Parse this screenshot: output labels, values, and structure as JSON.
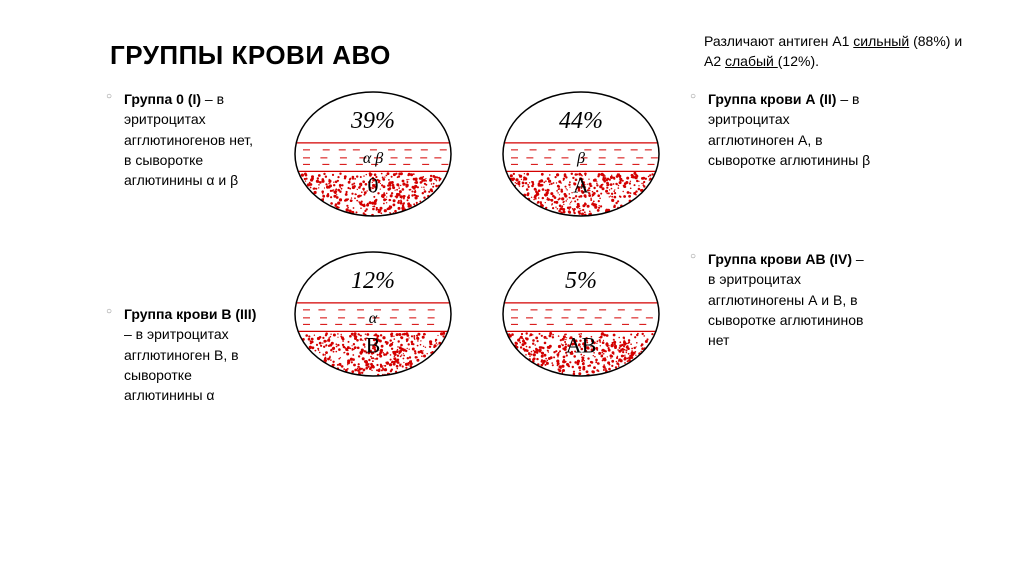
{
  "title": "ГРУППЫ КРОВИ АВО",
  "antigen_note_pre": "Различают антиген А1 ",
  "antigen_note_u1": "сильный",
  "antigen_note_mid": " (88%) и А2 ",
  "antigen_note_u2": "слабый ",
  "antigen_note_post": "(12%).",
  "groups": {
    "g1": {
      "label": "Группа 0 (I)",
      "text": " – в эритроцитах агглютиногенов нет, в сыворотке аглютинины α и β",
      "percent": "39%",
      "antibodies": "α β",
      "type": "0"
    },
    "g2": {
      "label": "Группа крови А (II)",
      "text": " – в эритроцитах агглютиноген А, в сыворотке аглютинины β",
      "percent": "44%",
      "antibodies": "β",
      "type": "А"
    },
    "g3": {
      "label": "Группа крови В (III)",
      "text": " – в эритроцитах агглютиноген В, в сыворотке аглютинины α",
      "percent": "12%",
      "antibodies": "α",
      "type": "В"
    },
    "g4": {
      "label": "Группа крови АВ (IV)",
      "text": " – в эритроцитах агглютиногены А и В, в сыворотке аглютининов нет",
      "percent": "5%",
      "antibodies": "",
      "type": "АВ"
    }
  },
  "diagram_style": {
    "ellipse_rx": 78,
    "ellipse_ry": 62,
    "stroke": "#000000",
    "stroke_width": 1.5,
    "red_line": "#d40000",
    "blood_color": "#d40000",
    "background": "#ffffff",
    "percent_fontsize": 24,
    "label_fontsize": 20,
    "type_fontsize": 22
  }
}
